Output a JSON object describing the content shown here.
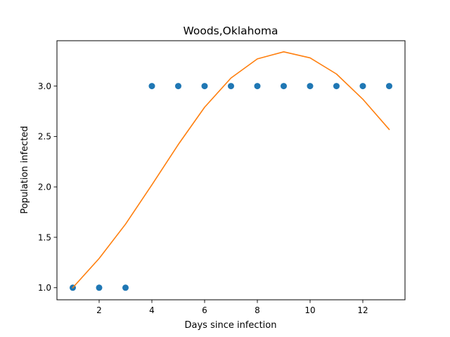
{
  "chart_data": {
    "type": "scatter",
    "title": "Woods,Oklahoma",
    "xlabel": "Days since infection",
    "ylabel": "Population infected",
    "xlim": [
      0.4,
      13.6
    ],
    "ylim": [
      0.88,
      3.45
    ],
    "xticks": [
      2,
      4,
      6,
      8,
      10,
      12
    ],
    "xtick_labels": [
      "2",
      "4",
      "6",
      "8",
      "10",
      "12"
    ],
    "yticks": [
      1.0,
      1.5,
      2.0,
      2.5,
      3.0
    ],
    "ytick_labels": [
      "1.0",
      "1.5",
      "2.0",
      "2.5",
      "3.0"
    ],
    "grid": false,
    "series": [
      {
        "kind": "scatter",
        "color": "#1f77b4",
        "x": [
          1,
          2,
          3,
          4,
          5,
          6,
          7,
          8,
          9,
          10,
          11,
          12,
          13
        ],
        "y": [
          1,
          1,
          1,
          3,
          3,
          3,
          3,
          3,
          3,
          3,
          3,
          3,
          3
        ]
      },
      {
        "kind": "line",
        "color": "#ff7f0e",
        "x": [
          1,
          2,
          3,
          4,
          5,
          6,
          7,
          8,
          9,
          10,
          11,
          12,
          13
        ],
        "y": [
          1.0,
          1.29,
          1.63,
          2.02,
          2.42,
          2.79,
          3.08,
          3.27,
          3.34,
          3.28,
          3.12,
          2.87,
          2.57
        ]
      }
    ]
  }
}
